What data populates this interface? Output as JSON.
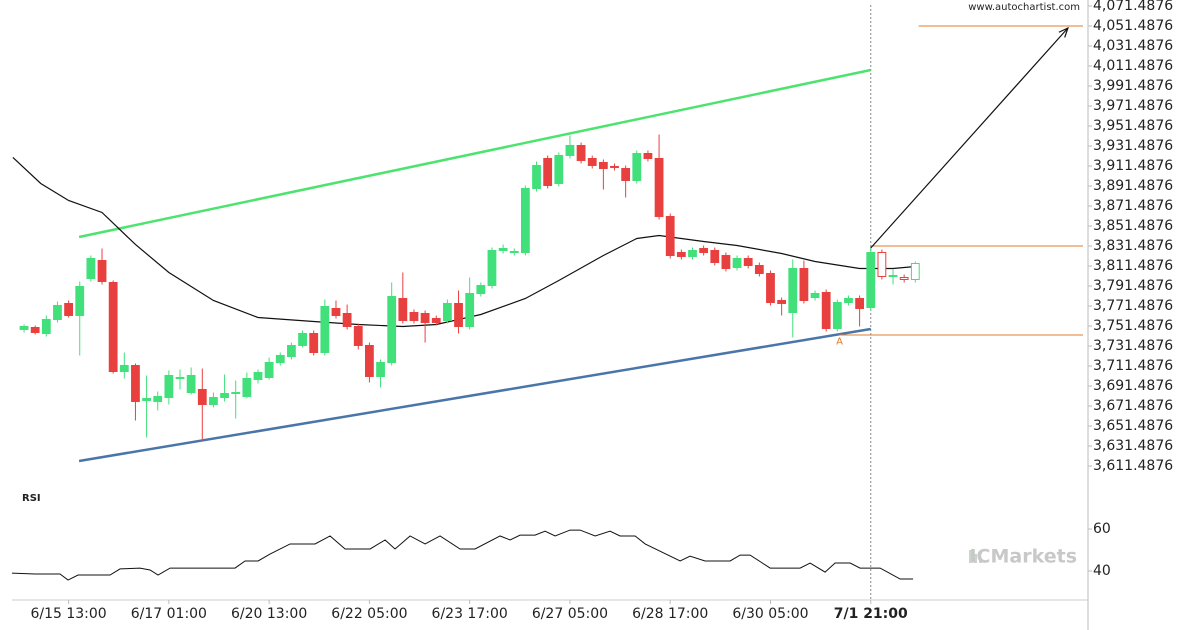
{
  "chart_data": [
    {
      "type": "candlestick",
      "watermark": "www.autochartist.com",
      "xlim": [
        -1.08,
        95.5
      ],
      "ylim": [
        3592.4876,
        4077.4876
      ],
      "yticks": [
        {
          "value": 4071.4876,
          "label": "4,071.4876"
        },
        {
          "value": 4051.4876,
          "label": "4,051.4876"
        },
        {
          "value": 4031.4876,
          "label": "4,031.4876"
        },
        {
          "value": 4011.4876,
          "label": "4,011.4876"
        },
        {
          "value": 3991.4876,
          "label": "3,991.4876"
        },
        {
          "value": 3971.4876,
          "label": "3,971.4876"
        },
        {
          "value": 3951.4876,
          "label": "3,951.4876"
        },
        {
          "value": 3931.4876,
          "label": "3,931.4876"
        },
        {
          "value": 3911.4876,
          "label": "3,911.4876"
        },
        {
          "value": 3891.4876,
          "label": "3,891.4876"
        },
        {
          "value": 3871.4876,
          "label": "3,871.4876"
        },
        {
          "value": 3851.4876,
          "label": "3,851.4876"
        },
        {
          "value": 3831.4876,
          "label": "3,831.4876"
        },
        {
          "value": 3811.4876,
          "label": "3,811.4876"
        },
        {
          "value": 3791.4876,
          "label": "3,791.4876"
        },
        {
          "value": 3771.4876,
          "label": "3,771.4876"
        },
        {
          "value": 3751.4876,
          "label": "3,751.4876"
        },
        {
          "value": 3731.4876,
          "label": "3,731.4876"
        },
        {
          "value": 3711.4876,
          "label": "3,711.4876"
        },
        {
          "value": 3691.4876,
          "label": "3,691.4876"
        },
        {
          "value": 3671.4876,
          "label": "3,671.4876"
        },
        {
          "value": 3651.4876,
          "label": "3,651.4876"
        },
        {
          "value": 3631.4876,
          "label": "3,631.4876"
        },
        {
          "value": 3611.4876,
          "label": "3,611.4876"
        }
      ],
      "xticks": [
        {
          "value": 4,
          "label": "6/15 13:00"
        },
        {
          "value": 13,
          "label": "6/17 01:00"
        },
        {
          "value": 22,
          "label": "6/20 13:00"
        },
        {
          "value": 31,
          "label": "6/22 05:00"
        },
        {
          "value": 40,
          "label": "6/23 17:00"
        },
        {
          "value": 49,
          "label": "6/27 05:00"
        },
        {
          "value": 58,
          "label": "6/28 17:00"
        },
        {
          "value": 67,
          "label": "6/30 05:00"
        },
        {
          "value": 76,
          "label": "7/1 21:00"
        }
      ],
      "current_x": 76,
      "up_color": "#41e07b",
      "down_color": "#e8403f",
      "hollow_from_x": 77,
      "x": [
        0,
        1,
        2,
        3,
        4,
        5,
        6,
        7,
        8,
        9,
        10,
        11,
        12,
        13,
        14,
        15,
        16,
        17,
        18,
        19,
        20,
        21,
        22,
        23,
        24,
        25,
        26,
        27,
        28,
        29,
        30,
        31,
        32,
        33,
        34,
        35,
        36,
        37,
        38,
        39,
        40,
        41,
        42,
        43,
        44,
        45,
        46,
        47,
        48,
        49,
        50,
        51,
        52,
        53,
        54,
        55,
        56,
        57,
        58,
        59,
        60,
        61,
        62,
        63,
        64,
        65,
        66,
        67,
        68,
        69,
        70,
        71,
        72,
        73,
        74,
        75,
        76,
        77,
        78,
        79,
        80
      ],
      "open": [
        3748,
        3750,
        3744,
        3758,
        3774,
        3762,
        3799,
        3817,
        3795,
        3706,
        3712,
        3677,
        3676,
        3680,
        3699,
        3685,
        3688,
        3673,
        3680,
        3684,
        3681,
        3698,
        3700,
        3715,
        3721,
        3732,
        3744,
        3725,
        3769,
        3764,
        3751,
        3732,
        3701,
        3715,
        3779,
        3765,
        3764,
        3759,
        3757,
        3774,
        3751,
        3784,
        3792,
        3827,
        3825,
        3825,
        3889,
        3919,
        3894,
        3922,
        3932,
        3919,
        3915,
        3911,
        3909,
        3897,
        3924,
        3919,
        3861,
        3825,
        3821,
        3829,
        3827,
        3822,
        3810,
        3819,
        3812,
        3804,
        3777,
        3765,
        3809,
        3780,
        3785,
        3749,
        3775,
        3779,
        3770,
        3825,
        3801,
        3800,
        3798
      ],
      "high": [
        3753,
        3752,
        3762,
        3776,
        3777,
        3796,
        3822,
        3829,
        3797,
        3725,
        3714,
        3702,
        3686,
        3707,
        3708,
        3710,
        3709,
        3685,
        3703,
        3697,
        3705,
        3708,
        3720,
        3725,
        3735,
        3747,
        3747,
        3778,
        3777,
        3773,
        3754,
        3735,
        3718,
        3795,
        3805,
        3768,
        3767,
        3762,
        3778,
        3787,
        3800,
        3795,
        3830,
        3833,
        3829,
        3892,
        3916,
        3922,
        3925,
        3942,
        3935,
        3922,
        3918,
        3914,
        3912,
        3927,
        3927,
        3943,
        3864,
        3828,
        3830,
        3832,
        3830,
        3825,
        3822,
        3822,
        3815,
        3807,
        3780,
        3818,
        3817,
        3787,
        3788,
        3778,
        3782,
        3782,
        3830,
        3828,
        3808,
        3803,
        3816
      ],
      "low": [
        3745,
        3743,
        3741,
        3755,
        3760,
        3722,
        3796,
        3793,
        3704,
        3699,
        3657,
        3640,
        3667,
        3673,
        3688,
        3683,
        3637,
        3670,
        3676,
        3659,
        3679,
        3694,
        3698,
        3712,
        3718,
        3730,
        3722,
        3722,
        3759,
        3748,
        3728,
        3695,
        3690,
        3712,
        3754,
        3754,
        3735,
        3752,
        3754,
        3744,
        3748,
        3781,
        3789,
        3824,
        3822,
        3822,
        3886,
        3889,
        3891,
        3919,
        3914,
        3909,
        3888,
        3907,
        3880,
        3894,
        3916,
        3858,
        3819,
        3818,
        3818,
        3822,
        3812,
        3806,
        3807,
        3809,
        3801,
        3772,
        3762,
        3740,
        3774,
        3777,
        3746,
        3746,
        3772,
        3751,
        3767,
        3798,
        3793,
        3795,
        3795
      ],
      "close": [
        3751,
        3745,
        3758,
        3772,
        3762,
        3791,
        3819,
        3796,
        3706,
        3712,
        3676,
        3679,
        3681,
        3702,
        3700,
        3702,
        3673,
        3680,
        3684,
        3685,
        3699,
        3705,
        3715,
        3722,
        3732,
        3744,
        3725,
        3771,
        3762,
        3751,
        3732,
        3701,
        3715,
        3781,
        3757,
        3757,
        3755,
        3755,
        3774,
        3751,
        3784,
        3792,
        3827,
        3829,
        3826,
        3889,
        3912,
        3892,
        3922,
        3932,
        3917,
        3912,
        3909,
        3910,
        3897,
        3924,
        3919,
        3861,
        3822,
        3821,
        3827,
        3825,
        3815,
        3809,
        3819,
        3812,
        3804,
        3775,
        3774,
        3809,
        3777,
        3784,
        3749,
        3775,
        3779,
        3769,
        3825,
        3801,
        3802,
        3798,
        3814
      ],
      "moving_average": {
        "color": "#111111",
        "x": [
          -1,
          1.5,
          4,
          7,
          10,
          13,
          17,
          21,
          26,
          30,
          34,
          37,
          41,
          45,
          48,
          52,
          55,
          57,
          61,
          64,
          68,
          71,
          75,
          78,
          80
        ],
        "values": [
          3920,
          3894,
          3877,
          3865,
          3833,
          3805,
          3777,
          3760,
          3756,
          3753,
          3751,
          3753,
          3763,
          3779,
          3797,
          3822,
          3839,
          3842,
          3836,
          3832,
          3824,
          3816,
          3809,
          3809,
          3811
        ]
      },
      "trend_lines": [
        {
          "color": "#4de36f",
          "x": [
            4.94,
            76
          ],
          "values": [
            3840.5,
            4007.5
          ]
        },
        {
          "color": "#4a75a8",
          "x": [
            4.94,
            76
          ],
          "values": [
            3616.5,
            3748.5
          ]
        }
      ],
      "levels": [
        {
          "value": 4051.4876,
          "x_from": 80.3
        },
        {
          "value": 3831.5,
          "x_from": 76
        },
        {
          "value": 3742.5,
          "x_from": 73.2
        }
      ],
      "level_color": "#e07b2a",
      "arrow": {
        "x": [
          76,
          93.7
        ],
        "values": [
          3829.5,
          4049.5
        ]
      },
      "annotations": [
        {
          "text": "A",
          "x": 73.2,
          "y": 3736
        }
      ]
    },
    {
      "type": "line",
      "title": "RSI",
      "watermark": "ICMarkets",
      "color": "#111111",
      "ylim": [
        26.2,
        78.6
      ],
      "yticks": [
        60,
        40
      ],
      "x": [
        -1.08,
        0.99,
        3.23,
        3.95,
        4.85,
        7.72,
        8.62,
        10.41,
        11.31,
        12.03,
        13.11,
        18.94,
        19.84,
        21.01,
        22.08,
        23.88,
        26.12,
        27.47,
        28.82,
        31.06,
        32.41,
        33.3,
        34.65,
        36,
        37.34,
        39.14,
        40.48,
        42.73,
        43.63,
        44.52,
        45.87,
        46.77,
        47.67,
        49.01,
        49.91,
        51.26,
        52.6,
        53.5,
        54.85,
        55.75,
        58.89,
        59.78,
        61.13,
        63.38,
        64.27,
        65.17,
        66.97,
        69.66,
        70.56,
        71.9,
        72.8,
        74.15,
        75.04,
        76.84,
        78.64,
        79.8
      ],
      "values": [
        39.0,
        38.6,
        38.6,
        35.7,
        38.1,
        38.1,
        41.0,
        41.4,
        40.5,
        38.1,
        41.4,
        41.4,
        44.8,
        44.8,
        48.1,
        52.9,
        52.9,
        56.7,
        50.5,
        50.5,
        54.8,
        50.5,
        56.7,
        52.9,
        56.7,
        50.5,
        50.5,
        56.7,
        54.8,
        57.1,
        57.1,
        59.0,
        56.7,
        59.5,
        59.5,
        56.7,
        59.0,
        56.7,
        56.7,
        52.9,
        44.8,
        47.1,
        44.8,
        44.8,
        47.6,
        47.6,
        41.4,
        41.4,
        43.8,
        39.5,
        43.8,
        43.8,
        41.4,
        41.4,
        36.2,
        36.2
      ]
    }
  ]
}
